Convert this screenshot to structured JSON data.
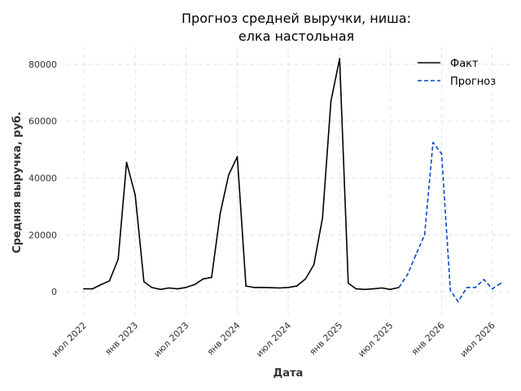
{
  "chart_data": {
    "type": "line",
    "title": "Прогноз средней выручки, ниша:\nелка настольная",
    "xlabel": "Дата",
    "ylabel": "Средняя выручка, руб.",
    "ylim": [
      -8000,
      86000
    ],
    "yticks": [
      0,
      20000,
      40000,
      60000,
      80000
    ],
    "ytick_labels": [
      "0",
      "20000",
      "40000",
      "60000",
      "80000"
    ],
    "xticks": [
      "2022-07-01",
      "2023-01-01",
      "2023-07-01",
      "2024-01-01",
      "2024-07-01",
      "2025-01-01",
      "2025-07-01",
      "2026-01-01",
      "2026-07-01"
    ],
    "xtick_labels": [
      "июл 2022",
      "янв 2023",
      "июл 2023",
      "янв 2024",
      "июл 2024",
      "янв 2025",
      "июл 2025",
      "янв 2026",
      "июл 2026"
    ],
    "xlim": [
      "2022-05-01",
      "2026-09-01"
    ],
    "grid": true,
    "legend_position": "top-right",
    "series": [
      {
        "name": "Факт",
        "color": "#000000",
        "style": "solid",
        "x": [
          "2022-07-01",
          "2022-08-01",
          "2022-09-01",
          "2022-10-01",
          "2022-11-01",
          "2022-12-01",
          "2023-01-01",
          "2023-02-01",
          "2023-03-01",
          "2023-04-01",
          "2023-05-01",
          "2023-06-01",
          "2023-07-01",
          "2023-08-01",
          "2023-09-01",
          "2023-10-01",
          "2023-11-01",
          "2023-12-01",
          "2024-01-01",
          "2024-02-01",
          "2024-03-01",
          "2024-04-01",
          "2024-05-01",
          "2024-06-01",
          "2024-07-01",
          "2024-08-01",
          "2024-09-01",
          "2024-10-01",
          "2024-11-01",
          "2024-12-01",
          "2025-01-01",
          "2025-02-01",
          "2025-03-01",
          "2025-04-01",
          "2025-05-01",
          "2025-06-01",
          "2025-07-01",
          "2025-08-01"
        ],
        "y": [
          1000,
          1000,
          2500,
          3800,
          11500,
          45500,
          34000,
          3500,
          1500,
          800,
          1300,
          1000,
          1500,
          2500,
          4500,
          5000,
          27500,
          41000,
          47500,
          2000,
          1500,
          1500,
          1400,
          1300,
          1500,
          2000,
          4500,
          9500,
          26000,
          67000,
          82000,
          3000,
          1000,
          800,
          1000,
          1300,
          800,
          1500
        ]
      },
      {
        "name": "Прогноз",
        "color": "#0a47c8",
        "style": "dashed",
        "x": [
          "2025-08-01",
          "2025-09-01",
          "2025-10-01",
          "2025-11-01",
          "2025-12-01",
          "2026-01-01",
          "2026-02-01",
          "2026-03-01",
          "2026-04-01",
          "2026-05-01",
          "2026-06-01",
          "2026-07-01",
          "2026-08-01"
        ],
        "y": [
          1500,
          6000,
          13000,
          20000,
          52500,
          48500,
          500,
          -3500,
          1500,
          1500,
          4300,
          1000,
          3000
        ]
      }
    ]
  }
}
